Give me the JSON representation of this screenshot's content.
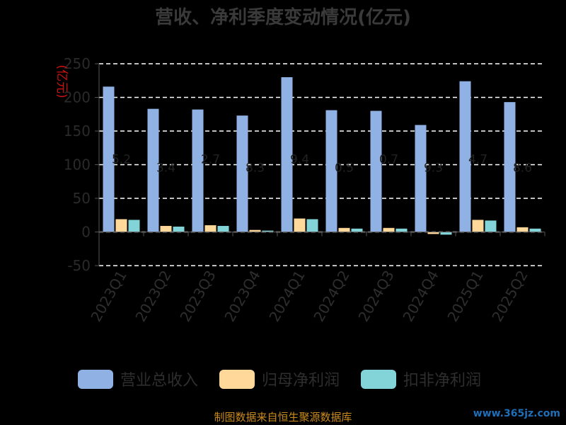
{
  "chart_data": {
    "type": "bar",
    "title": "营收、净利季度变动情况(亿元)",
    "ylabel": "(亿元)",
    "ylim": [
      -50,
      250
    ],
    "yticks": [
      250,
      200,
      150,
      100,
      50,
      0,
      -50
    ],
    "grid": true,
    "legend_position": "bottom",
    "categories": [
      "2023Q1",
      "2023Q2",
      "2023Q3",
      "2023Q4",
      "2024Q1",
      "2024Q2",
      "2024Q3",
      "2024Q4",
      "2025Q1",
      "2025Q2"
    ],
    "series": [
      {
        "name": "营业总收入",
        "color": "#8fb1e3",
        "values": [
          216,
          183,
          182,
          173,
          230,
          181,
          180,
          159,
          224,
          193
        ]
      },
      {
        "name": "归母净利润",
        "color": "#ffd89a",
        "values": [
          19,
          9,
          10,
          3,
          20,
          6,
          6,
          -3,
          18,
          7
        ]
      },
      {
        "name": "扣非净利润",
        "color": "#82d4d8",
        "values": [
          18,
          8,
          9,
          2,
          19,
          5,
          5,
          -4,
          17,
          5
        ]
      }
    ],
    "data_labels": [
      "5.2",
      "3.4",
      "2.7",
      "8.3",
      "9.4",
      "0.5",
      "0.7",
      "9.3",
      "4.7",
      "8.6"
    ]
  },
  "source": "制图数据来自恒生聚源数据库",
  "watermark": "www.365jz.com"
}
